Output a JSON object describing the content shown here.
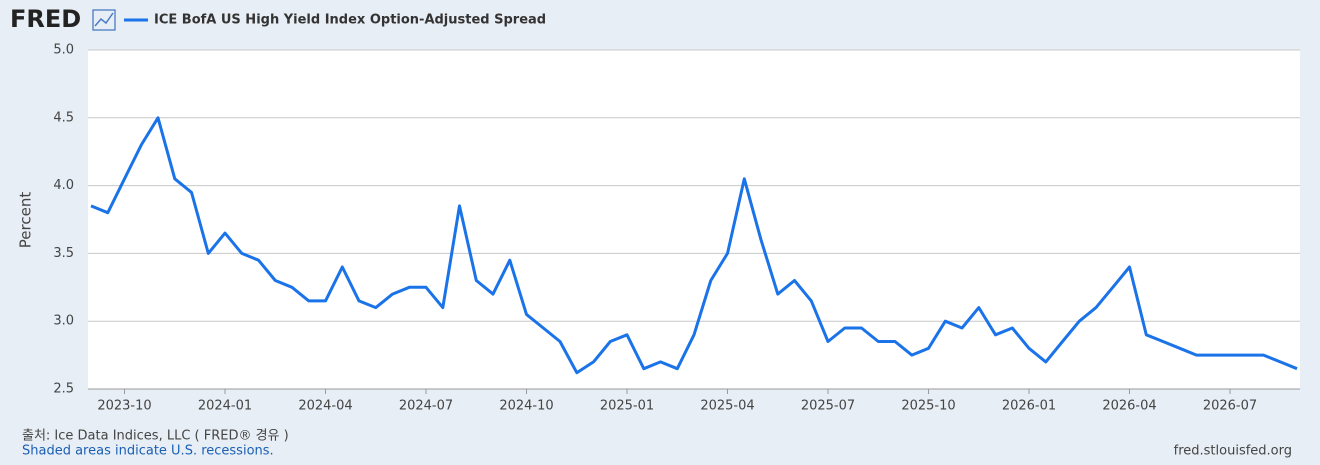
{
  "chart_data": {
    "type": "line",
    "logo": "FRED",
    "ylabel": "Percent",
    "source": "출처: Ice Data Indices, LLC ( FRED® 경유 )",
    "note": "Shaded areas indicate U.S. recessions.",
    "url": "fred.stlouisfed.org",
    "categories": [
      null,
      null,
      "2023-10",
      null,
      null,
      null,
      null,
      null,
      "2024-01",
      null,
      null,
      null,
      null,
      null,
      "2024-04",
      null,
      null,
      null,
      null,
      null,
      "2024-07",
      null,
      null,
      null,
      null,
      null,
      "2024-10",
      null,
      null,
      null,
      null,
      null,
      "2025-01",
      null,
      null,
      null,
      null,
      null,
      "2025-04",
      null,
      null,
      null,
      null,
      null,
      "2025-07",
      null,
      null,
      null,
      null,
      null,
      "2025-10",
      null,
      null,
      null,
      null,
      null,
      "2026-01",
      null,
      null,
      null,
      null,
      null,
      "2026-04",
      null,
      null,
      null,
      null,
      null,
      "2026-07",
      null,
      null,
      null,
      null
    ],
    "series": [
      {
        "name": "ICE BofA US High Yield Index Option-Adjusted Spread",
        "color": "#1a73e8",
        "values": [
          3.85,
          3.8,
          4.05,
          4.3,
          4.5,
          4.05,
          3.95,
          3.5,
          3.65,
          3.5,
          3.45,
          3.3,
          3.25,
          3.15,
          3.15,
          3.4,
          3.15,
          3.1,
          3.2,
          3.25,
          3.25,
          3.1,
          3.85,
          3.3,
          3.2,
          3.45,
          3.05,
          2.95,
          2.85,
          2.62,
          2.7,
          2.85,
          2.9,
          2.65,
          2.7,
          2.65,
          2.9,
          3.3,
          3.5,
          4.05,
          3.6,
          3.2,
          3.3,
          3.15,
          2.85,
          2.95,
          2.95,
          2.85,
          2.85,
          2.75,
          2.8,
          3.0,
          2.95,
          3.1,
          2.9,
          2.95,
          2.8,
          2.7,
          2.85,
          3.0,
          3.1,
          3.25,
          3.4,
          2.9,
          2.85,
          2.8,
          2.75,
          2.75,
          2.75,
          2.75,
          2.75,
          2.7,
          2.65
        ]
      }
    ],
    "ylim": [
      2.5,
      5.0
    ],
    "yticks": [
      2.5,
      {
        "value": 3,
        "label": "3.0"
      },
      3.5,
      {
        "value": 4,
        "label": "4.0"
      },
      4.5,
      {
        "value": 5,
        "label": "5.0"
      }
    ],
    "grid": true
  }
}
